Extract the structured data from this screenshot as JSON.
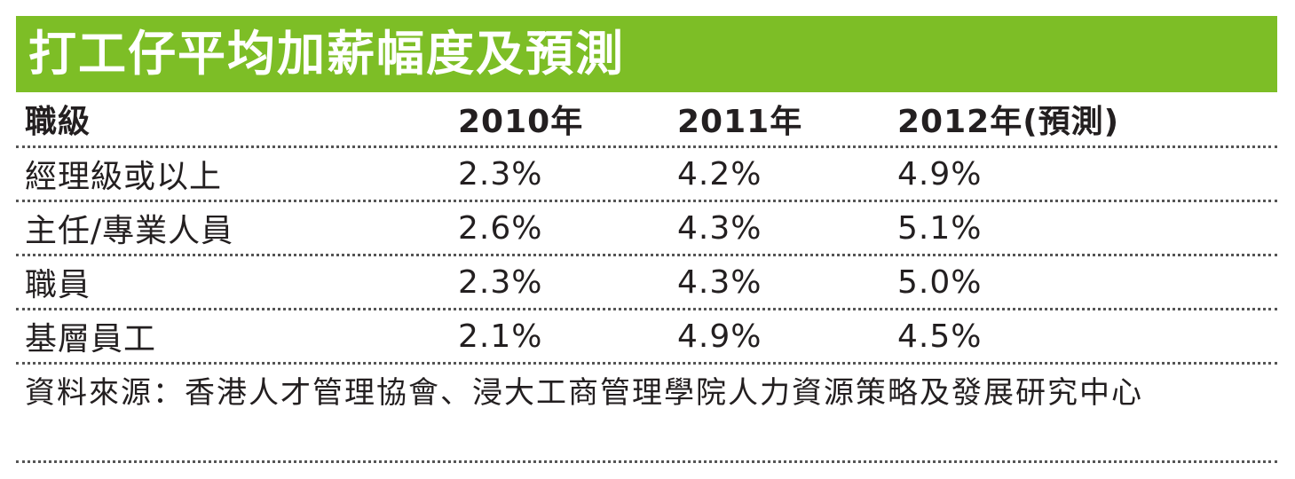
{
  "title": "打工仔平均加薪幅度及預測",
  "table": {
    "headers": [
      "職級",
      "2010年",
      "2011年",
      "2012年(預測)"
    ],
    "rows": [
      [
        "經理級或以上",
        "2.3%",
        "4.2%",
        "4.9%"
      ],
      [
        "主任/專業人員",
        "2.6%",
        "4.3%",
        "5.1%"
      ],
      [
        "職員",
        "2.3%",
        "4.3%",
        "5.0%"
      ],
      [
        "基層員工",
        "2.1%",
        "4.9%",
        "4.5%"
      ]
    ]
  },
  "source": "資料來源：香港人才管理協會、浸大工商管理學院人力資源策略及發展研究中心",
  "colors": {
    "title_bg": "#7dbe26",
    "title_text": "#ffffff",
    "body_text": "#231f20"
  }
}
